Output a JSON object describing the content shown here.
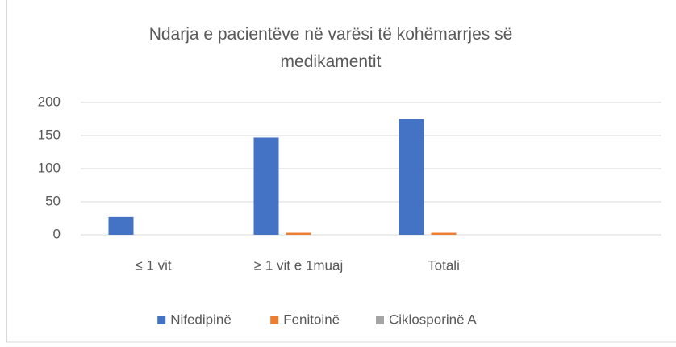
{
  "chart_data": {
    "type": "bar",
    "title": "Ndarja e pacientëve në varësi të kohëmarrjes së medikamentit",
    "categories": [
      "≤ 1 vit",
      "≥ 1 vit e 1muaj",
      "Totali",
      null
    ],
    "series": [
      {
        "name": "Nifedipinë",
        "color": "#4472c4",
        "values": [
          27,
          147,
          175,
          null
        ]
      },
      {
        "name": "Fenitoinë",
        "color": "#ed7d31",
        "values": [
          0,
          3,
          3,
          null
        ]
      },
      {
        "name": "Ciklosporinë A",
        "color": "#a5a5a5",
        "values": [
          0,
          0,
          0,
          null
        ]
      }
    ],
    "ylim": [
      0,
      200
    ],
    "yticks": [
      0,
      50,
      100,
      150,
      200
    ],
    "grid": true,
    "legend": "bottom"
  }
}
